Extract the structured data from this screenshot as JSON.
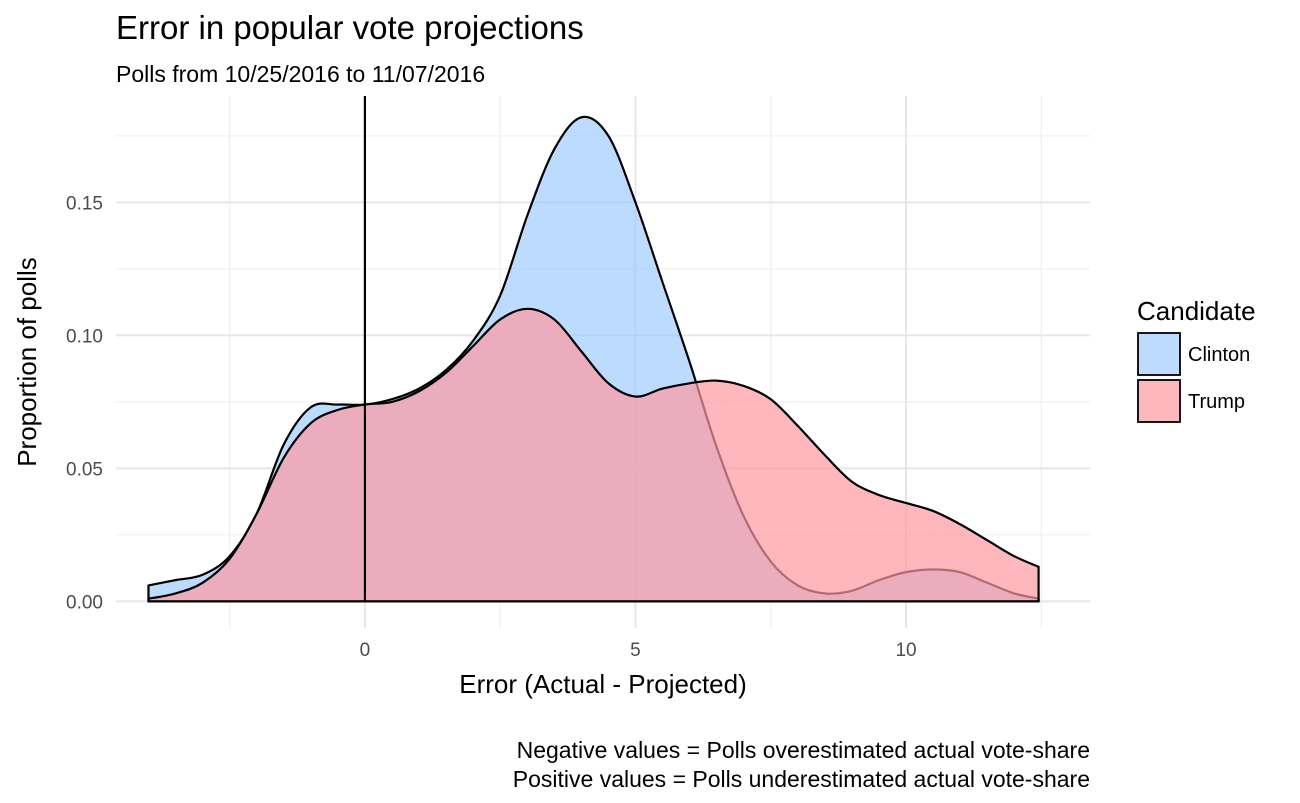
{
  "chart_data": {
    "type": "area",
    "title": "Error in popular vote projections",
    "subtitle": "Polls from 10/25/2016 to 11/07/2016",
    "xlabel": "Error (Actual - Projected)",
    "ylabel": "Proportion of polls",
    "xlim": [
      -4.6,
      13.4
    ],
    "ylim": [
      -0.01,
      0.19
    ],
    "x_ticks": [
      0,
      5,
      10
    ],
    "x_tick_labels": [
      "0",
      "5",
      "10"
    ],
    "y_ticks": [
      0.0,
      0.05,
      0.1,
      0.15
    ],
    "y_tick_labels": [
      "0.00",
      "0.05",
      "0.10",
      "0.15"
    ],
    "reference_line_x": 0,
    "grid": true,
    "legend": {
      "title": "Candidate",
      "placement": "right"
    },
    "caption": [
      "Negative values = Polls overestimated actual vote-share",
      "Positive values = Polls underestimated actual vote-share"
    ],
    "series": [
      {
        "name": "Clinton",
        "color": "#99c7ff",
        "x": [
          -4.0,
          -3.5,
          -3.0,
          -2.5,
          -2.0,
          -1.5,
          -1.0,
          -0.5,
          0.0,
          0.5,
          1.0,
          1.5,
          2.0,
          2.5,
          3.0,
          3.5,
          4.0,
          4.5,
          5.0,
          5.5,
          6.0,
          6.5,
          7.0,
          7.5,
          8.0,
          8.5,
          9.0,
          9.5,
          10.0,
          10.5,
          11.0,
          11.5,
          12.0,
          12.45
        ],
        "values": [
          0.006,
          0.008,
          0.01,
          0.017,
          0.033,
          0.059,
          0.073,
          0.074,
          0.074,
          0.076,
          0.08,
          0.087,
          0.098,
          0.115,
          0.145,
          0.17,
          0.182,
          0.175,
          0.15,
          0.12,
          0.09,
          0.058,
          0.032,
          0.015,
          0.006,
          0.003,
          0.004,
          0.008,
          0.011,
          0.012,
          0.011,
          0.007,
          0.003,
          0.001
        ]
      },
      {
        "name": "Trump",
        "color": "#ff99a3",
        "x": [
          -4.0,
          -3.5,
          -3.0,
          -2.5,
          -2.0,
          -1.5,
          -1.0,
          -0.5,
          0.0,
          0.5,
          1.0,
          1.5,
          2.0,
          2.5,
          3.0,
          3.5,
          4.0,
          4.5,
          5.0,
          5.5,
          6.0,
          6.5,
          7.0,
          7.5,
          8.0,
          8.5,
          9.0,
          9.5,
          10.0,
          10.5,
          11.0,
          11.5,
          12.0,
          12.45
        ],
        "values": [
          0.001,
          0.003,
          0.007,
          0.016,
          0.033,
          0.054,
          0.067,
          0.072,
          0.074,
          0.075,
          0.079,
          0.086,
          0.096,
          0.106,
          0.11,
          0.106,
          0.094,
          0.082,
          0.077,
          0.08,
          0.082,
          0.083,
          0.081,
          0.076,
          0.066,
          0.055,
          0.045,
          0.04,
          0.037,
          0.034,
          0.029,
          0.023,
          0.017,
          0.013
        ]
      }
    ]
  }
}
